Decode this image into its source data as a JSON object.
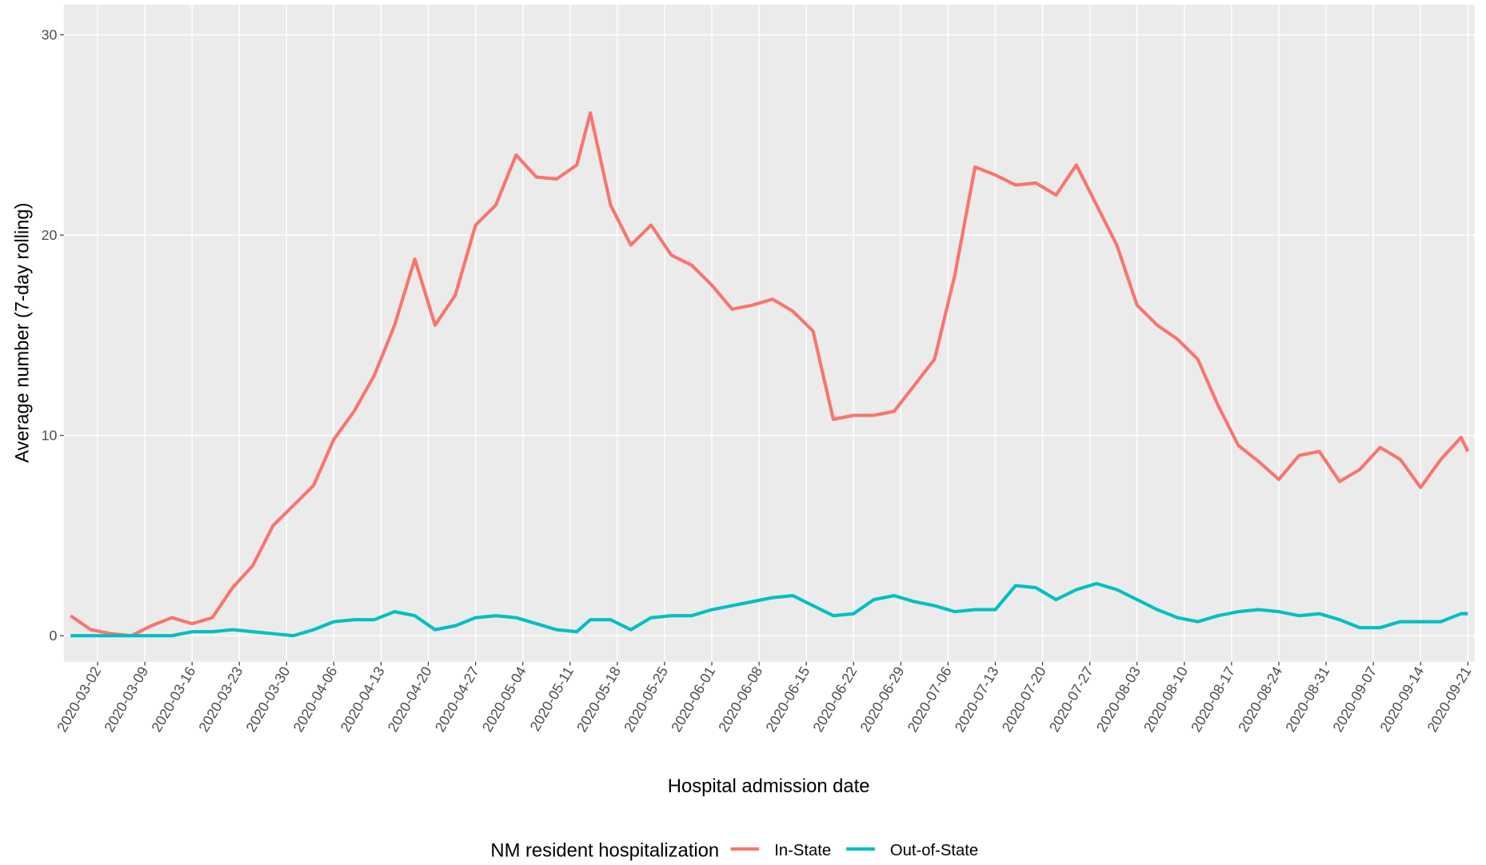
{
  "chart_data": {
    "type": "line",
    "x_label": "Hospital admission date",
    "y_label": "Average number (7-day rolling)",
    "legend_title": "NM resident hospitalization",
    "legend_position": "bottom",
    "grid": true,
    "x": [
      "2020-02-27",
      "2020-03-01",
      "2020-03-04",
      "2020-03-07",
      "2020-03-10",
      "2020-03-13",
      "2020-03-16",
      "2020-03-19",
      "2020-03-22",
      "2020-03-25",
      "2020-03-28",
      "2020-03-31",
      "2020-04-03",
      "2020-04-06",
      "2020-04-09",
      "2020-04-12",
      "2020-04-15",
      "2020-04-18",
      "2020-04-21",
      "2020-04-24",
      "2020-04-27",
      "2020-04-30",
      "2020-05-03",
      "2020-05-06",
      "2020-05-09",
      "2020-05-12",
      "2020-05-14",
      "2020-05-17",
      "2020-05-20",
      "2020-05-23",
      "2020-05-26",
      "2020-05-29",
      "2020-06-01",
      "2020-06-04",
      "2020-06-07",
      "2020-06-10",
      "2020-06-13",
      "2020-06-16",
      "2020-06-19",
      "2020-06-22",
      "2020-06-25",
      "2020-06-28",
      "2020-07-01",
      "2020-07-04",
      "2020-07-07",
      "2020-07-10",
      "2020-07-13",
      "2020-07-16",
      "2020-07-19",
      "2020-07-22",
      "2020-07-25",
      "2020-07-28",
      "2020-07-31",
      "2020-08-03",
      "2020-08-06",
      "2020-08-09",
      "2020-08-12",
      "2020-08-15",
      "2020-08-18",
      "2020-08-21",
      "2020-08-24",
      "2020-08-27",
      "2020-08-30",
      "2020-09-02",
      "2020-09-05",
      "2020-09-08",
      "2020-09-11",
      "2020-09-14",
      "2020-09-17",
      "2020-09-20",
      "2020-09-21"
    ],
    "series": [
      {
        "name": "In-State",
        "color": "#F8766D",
        "values": [
          1.0,
          0.3,
          0.1,
          0.0,
          0.5,
          0.9,
          0.6,
          0.9,
          2.4,
          3.5,
          5.5,
          6.5,
          7.5,
          9.8,
          11.2,
          13.0,
          15.5,
          18.8,
          15.5,
          17.0,
          20.5,
          21.5,
          24.0,
          22.9,
          22.8,
          23.5,
          26.1,
          21.5,
          19.5,
          20.5,
          19.0,
          18.5,
          17.5,
          16.3,
          16.5,
          16.8,
          16.2,
          15.2,
          10.8,
          11.0,
          11.0,
          11.2,
          12.5,
          13.8,
          18.0,
          23.4,
          23.0,
          22.5,
          22.6,
          22.0,
          23.5,
          21.5,
          19.5,
          16.5,
          15.5,
          14.8,
          13.8,
          11.5,
          9.5,
          8.7,
          7.8,
          9.0,
          9.2,
          7.7,
          8.3,
          9.4,
          8.8,
          7.4,
          8.8,
          9.9,
          9.2
        ]
      },
      {
        "name": "Out-of-State",
        "color": "#00BFC4",
        "values": [
          0,
          0,
          0,
          0,
          0,
          0,
          0.2,
          0.2,
          0.3,
          0.2,
          0.1,
          0,
          0.3,
          0.7,
          0.8,
          0.8,
          1.2,
          1.0,
          0.3,
          0.5,
          0.9,
          1.0,
          0.9,
          0.6,
          0.3,
          0.2,
          0.8,
          0.8,
          0.3,
          0.9,
          1.0,
          1.0,
          1.3,
          1.5,
          1.7,
          1.9,
          2.0,
          1.5,
          1.0,
          1.1,
          1.8,
          2.0,
          1.7,
          1.5,
          1.2,
          1.3,
          1.3,
          2.5,
          2.4,
          1.8,
          2.3,
          2.6,
          2.3,
          1.8,
          1.3,
          0.9,
          0.7,
          1.0,
          1.2,
          1.3,
          1.2,
          1.0,
          1.1,
          0.8,
          0.4,
          0.4,
          0.7,
          0.7,
          0.7,
          1.1,
          1.1
        ]
      }
    ],
    "xlim": [
      "2020-02-26",
      "2020-09-22"
    ],
    "xticks": [
      "2020-03-02",
      "2020-03-09",
      "2020-03-16",
      "2020-03-23",
      "2020-03-30",
      "2020-04-06",
      "2020-04-13",
      "2020-04-20",
      "2020-04-27",
      "2020-05-04",
      "2020-05-11",
      "2020-05-18",
      "2020-05-25",
      "2020-06-01",
      "2020-06-08",
      "2020-06-15",
      "2020-06-22",
      "2020-06-29",
      "2020-07-06",
      "2020-07-13",
      "2020-07-20",
      "2020-07-27",
      "2020-08-03",
      "2020-08-10",
      "2020-08-17",
      "2020-08-24",
      "2020-08-31",
      "2020-09-07",
      "2020-09-14",
      "2020-09-21"
    ],
    "ylim": [
      -1.3,
      31.5
    ],
    "yticks": [
      0,
      10,
      20,
      30
    ]
  }
}
